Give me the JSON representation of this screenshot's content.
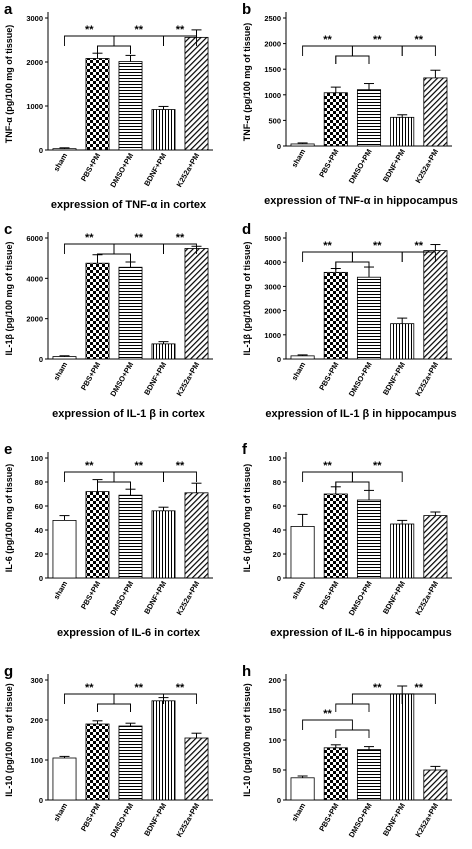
{
  "chart_data": [
    {
      "type": "bar",
      "panel": "a",
      "title": "expression of TNF-α in cortex",
      "ylabel": "TNF-α (pg/100 mg of tissue)",
      "categories": [
        "sham",
        "PBS+PM",
        "DMSO+PM",
        "BDNF+PM",
        "K252a+PM"
      ],
      "values": [
        30,
        2080,
        2010,
        920,
        2560
      ],
      "errors": [
        20,
        120,
        140,
        70,
        170
      ],
      "ylim": [
        0,
        3000
      ],
      "yticks": [
        0,
        1000,
        2000,
        3000
      ],
      "significance": [
        "**",
        "**",
        "**"
      ]
    },
    {
      "type": "bar",
      "panel": "b",
      "title": "expression of TNF-α in hippocampus",
      "ylabel": "TNF-α (pg/100 mg of tissue)",
      "categories": [
        "sham",
        "PBS+PM",
        "DMSO+PM",
        "BDNF+PM",
        "K252a+PM"
      ],
      "values": [
        40,
        1040,
        1100,
        560,
        1330
      ],
      "errors": [
        20,
        110,
        120,
        50,
        150
      ],
      "ylim": [
        0,
        2500
      ],
      "yticks": [
        0,
        500,
        1000,
        1500,
        2000,
        2500
      ],
      "significance": [
        "**",
        "**",
        "**"
      ]
    },
    {
      "type": "bar",
      "panel": "c",
      "title": "expression of IL-1 β in cortex",
      "ylabel": "IL-1β (pg/100 mg of tissue)",
      "categories": [
        "sham",
        "PBS+PM",
        "DMSO+PM",
        "BDNF+PM",
        "K252a+PM"
      ],
      "values": [
        120,
        4750,
        4550,
        750,
        5480
      ],
      "errors": [
        40,
        420,
        260,
        110,
        110
      ],
      "ylim": [
        0,
        6000
      ],
      "yticks": [
        0,
        2000,
        4000,
        6000
      ],
      "significance": [
        "**",
        "**",
        "**"
      ]
    },
    {
      "type": "bar",
      "panel": "d",
      "title": "expression of IL-1 β in hippocampus",
      "ylabel": "IL-1β (pg/100 mg of tissue)",
      "categories": [
        "sham",
        "PBS+PM",
        "DMSO+PM",
        "BDNF+PM",
        "K252a+PM"
      ],
      "values": [
        130,
        3580,
        3380,
        1460,
        4480
      ],
      "errors": [
        40,
        160,
        420,
        230,
        250
      ],
      "ylim": [
        0,
        5000
      ],
      "yticks": [
        0,
        1000,
        2000,
        3000,
        4000,
        5000
      ],
      "significance": [
        "**",
        "**",
        "**"
      ]
    },
    {
      "type": "bar",
      "panel": "e",
      "title": "expression of IL-6 in cortex",
      "ylabel": "IL-6 (pg/100 mg of tissue)",
      "categories": [
        "sham",
        "PBS+PM",
        "DMSO+PM",
        "BDNF+PM",
        "K252a+PM"
      ],
      "values": [
        48,
        72,
        69,
        56,
        71
      ],
      "errors": [
        4,
        10,
        5,
        3,
        8
      ],
      "ylim": [
        0,
        100
      ],
      "yticks": [
        0,
        20,
        40,
        60,
        80,
        100
      ],
      "significance": [
        "**",
        "**",
        "**"
      ]
    },
    {
      "type": "bar",
      "panel": "f",
      "title": "expression of IL-6 in hippocampus",
      "ylabel": "IL-6 (pg/100 mg of tissue)",
      "categories": [
        "sham",
        "PBS+PM",
        "DMSO+PM",
        "BDNF+PM",
        "K252a+PM"
      ],
      "values": [
        43,
        70,
        65,
        45,
        52
      ],
      "errors": [
        10,
        6,
        8,
        3,
        3
      ],
      "ylim": [
        0,
        100
      ],
      "yticks": [
        0,
        20,
        40,
        60,
        80,
        100
      ],
      "significance": [
        "**",
        "**"
      ]
    },
    {
      "type": "bar",
      "panel": "g",
      "title": "expression of IL-10 in cortex",
      "ylabel": "IL-10 (pg/100 mg of tissue)",
      "categories": [
        "sham",
        "PBS+PM",
        "DMSO+PM",
        "BDNF+PM",
        "K252a+PM"
      ],
      "values": [
        105,
        190,
        185,
        248,
        155
      ],
      "errors": [
        4,
        8,
        7,
        8,
        12
      ],
      "ylim": [
        0,
        300
      ],
      "yticks": [
        0,
        100,
        200,
        300
      ],
      "significance": [
        "**",
        "**",
        "**"
      ]
    },
    {
      "type": "bar",
      "panel": "h",
      "title": "expression of IL-10 in hippocampus",
      "ylabel": "IL-10 (pg/100 mg of tissue)",
      "categories": [
        "sham",
        "PBS+PM",
        "DMSO+PM",
        "BDNF+PM",
        "K252a+PM"
      ],
      "values": [
        37,
        87,
        84,
        177,
        50
      ],
      "errors": [
        3,
        5,
        5,
        13,
        6
      ],
      "ylim": [
        0,
        200
      ],
      "yticks": [
        0,
        50,
        100,
        150,
        200
      ],
      "significance": [
        "**",
        "**",
        "**"
      ]
    }
  ]
}
